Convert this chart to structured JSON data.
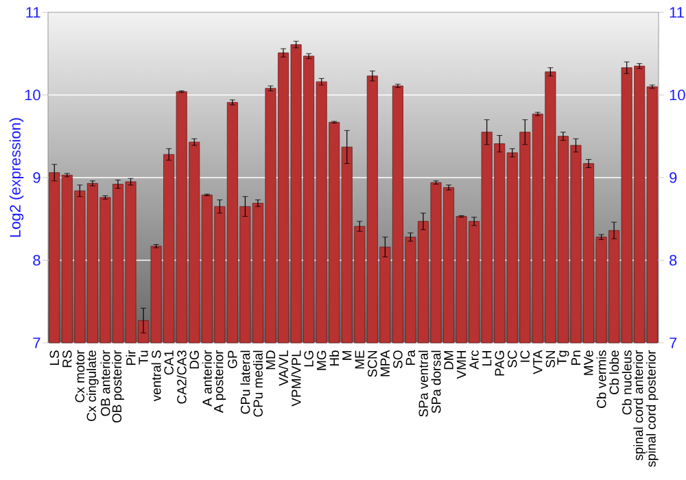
{
  "chart_data": {
    "type": "bar",
    "ylabel": "Log2 (expression)",
    "categories": [
      "LS",
      "RS",
      "Cx motor",
      "Cx cingulate",
      "OB anterior",
      "OB posterior",
      "Pir",
      "Tu",
      "ventral S",
      "CA1",
      "CA2/CA3",
      "DG",
      "A anterior",
      "A posterior",
      "GP",
      "CPu lateral",
      "CPu medial",
      "MD",
      "VA/VL",
      "VPM/VPL",
      "LG",
      "MG",
      "Hb",
      "M",
      "ME",
      "SCN",
      "MPA",
      "SO",
      "Pa",
      "SPa ventral",
      "SPa dorsal",
      "DM",
      "VMH",
      "Arc",
      "LH",
      "PAG",
      "SC",
      "IC",
      "VTA",
      "SN",
      "Tg",
      "Pn",
      "MVe",
      "Cb vermis",
      "Cb lobe",
      "Cb nucleus",
      "spinal cord anterior",
      "spinal cord posterior"
    ],
    "values": [
      9.06,
      9.03,
      8.84,
      8.93,
      8.76,
      8.92,
      8.95,
      7.27,
      8.17,
      9.28,
      10.04,
      9.43,
      8.79,
      8.65,
      9.91,
      8.65,
      8.69,
      10.08,
      10.51,
      10.61,
      10.47,
      10.16,
      9.67,
      9.37,
      8.41,
      10.23,
      8.16,
      10.11,
      8.28,
      8.47,
      8.94,
      8.88,
      8.53,
      8.47,
      9.55,
      9.41,
      9.3,
      9.55,
      9.77,
      10.28,
      9.5,
      9.39,
      9.17,
      8.28,
      8.36,
      10.33,
      10.35,
      10.1
    ],
    "errors": [
      0.1,
      0.02,
      0.07,
      0.03,
      0.02,
      0.05,
      0.04,
      0.15,
      0.02,
      0.07,
      0.01,
      0.04,
      0.01,
      0.08,
      0.03,
      0.12,
      0.04,
      0.03,
      0.05,
      0.04,
      0.03,
      0.04,
      0.01,
      0.2,
      0.06,
      0.06,
      0.12,
      0.02,
      0.05,
      0.1,
      0.02,
      0.03,
      0.01,
      0.05,
      0.15,
      0.1,
      0.05,
      0.15,
      0.02,
      0.05,
      0.05,
      0.08,
      0.05,
      0.03,
      0.1,
      0.07,
      0.03,
      0.02
    ],
    "color": "#b83232",
    "ylim": [
      7,
      11
    ],
    "yticks": [
      7,
      8,
      9,
      10,
      11
    ],
    "y2lim": [
      7,
      11
    ],
    "y2ticks": [
      7,
      8,
      9,
      10,
      11
    ],
    "grid": "y"
  }
}
